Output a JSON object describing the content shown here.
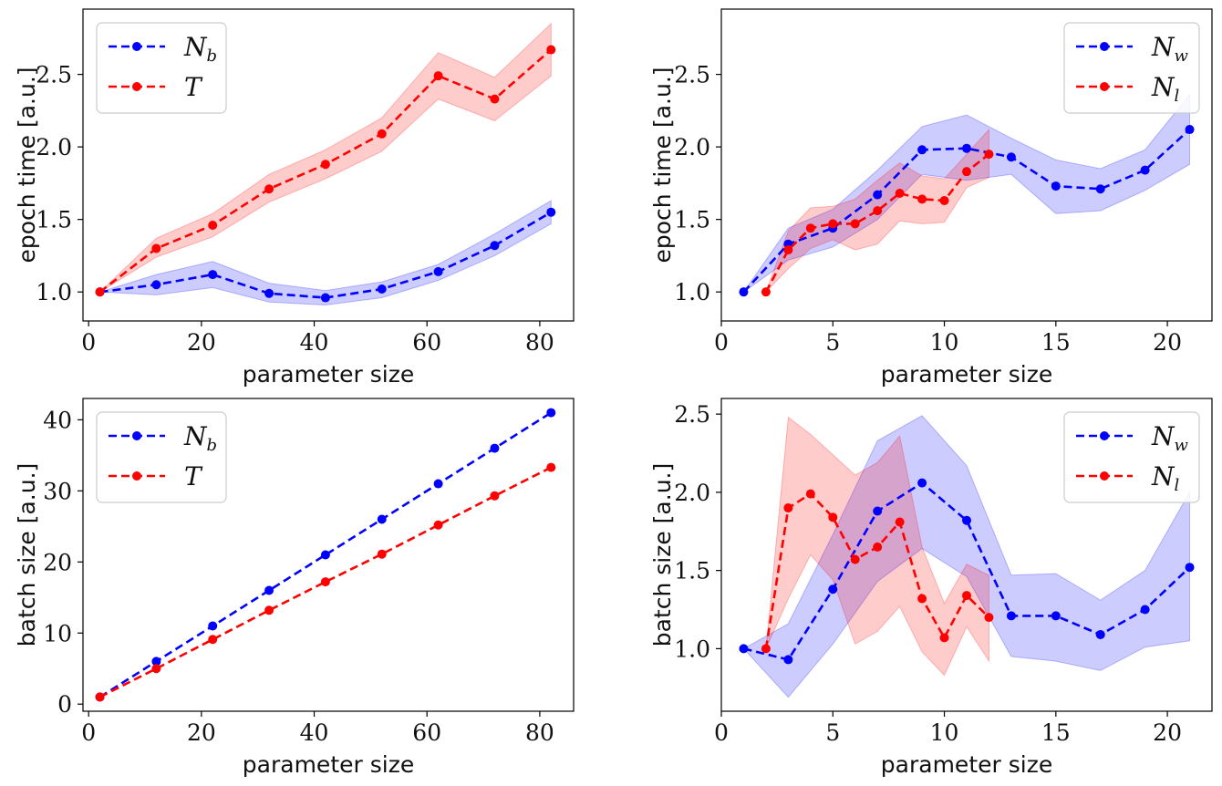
{
  "chart_data": [
    {
      "id": "epoch-vs-param-a",
      "type": "line",
      "xlabel": "parameter size",
      "ylabel": "epoch time [a.u.]",
      "xlim": [
        -1,
        86
      ],
      "ylim": [
        0.8,
        2.95
      ],
      "xticks": [
        0,
        20,
        40,
        60,
        80
      ],
      "yticks": [
        1.0,
        1.5,
        2.0,
        2.5
      ],
      "tick_labels_x": [
        "0",
        "20",
        "40",
        "60",
        "80"
      ],
      "tick_labels_y": [
        "1.0",
        "1.5",
        "2.0",
        "2.5"
      ],
      "legend_position": "top-left",
      "series": [
        {
          "name": "N",
          "sub": "b",
          "color": "#0000ff",
          "x": [
            2,
            12,
            22,
            32,
            42,
            52,
            62,
            72,
            82
          ],
          "y": [
            1.0,
            1.05,
            1.12,
            0.99,
            0.96,
            1.02,
            1.14,
            1.32,
            1.55
          ],
          "lower": [
            1.0,
            0.98,
            1.03,
            0.93,
            0.91,
            0.96,
            1.08,
            1.25,
            1.47
          ],
          "upper": [
            1.0,
            1.12,
            1.21,
            1.06,
            1.01,
            1.07,
            1.19,
            1.4,
            1.63
          ]
        },
        {
          "name": "T",
          "sub": "",
          "color": "#ff0000",
          "x": [
            2,
            12,
            22,
            32,
            42,
            52,
            62,
            72,
            82
          ],
          "y": [
            1.0,
            1.3,
            1.46,
            1.71,
            1.88,
            2.09,
            2.49,
            2.33,
            2.67
          ],
          "lower": [
            1.0,
            1.24,
            1.38,
            1.62,
            1.78,
            1.97,
            2.33,
            2.18,
            2.49
          ],
          "upper": [
            1.0,
            1.37,
            1.54,
            1.81,
            1.98,
            2.2,
            2.65,
            2.48,
            2.85
          ]
        }
      ]
    },
    {
      "id": "epoch-vs-param-b",
      "type": "line",
      "xlabel": "parameter size",
      "ylabel": "epoch time [a.u.]",
      "xlim": [
        0,
        22
      ],
      "ylim": [
        0.8,
        2.95
      ],
      "xticks": [
        0,
        5,
        10,
        15,
        20
      ],
      "yticks": [
        1.0,
        1.5,
        2.0,
        2.5
      ],
      "tick_labels_x": [
        "0",
        "5",
        "10",
        "15",
        "20"
      ],
      "tick_labels_y": [
        "1.0",
        "1.5",
        "2.0",
        "2.5"
      ],
      "legend_position": "top-right",
      "series": [
        {
          "name": "N",
          "sub": "w",
          "color": "#0000ff",
          "x": [
            1,
            3,
            5,
            7,
            9,
            11,
            13,
            15,
            17,
            19,
            21
          ],
          "y": [
            1.0,
            1.33,
            1.44,
            1.67,
            1.98,
            1.99,
            1.93,
            1.73,
            1.71,
            1.84,
            2.12
          ],
          "lower": [
            1.0,
            1.22,
            1.31,
            1.5,
            1.81,
            1.77,
            1.81,
            1.54,
            1.56,
            1.7,
            1.88
          ],
          "upper": [
            1.0,
            1.44,
            1.57,
            1.84,
            2.14,
            2.22,
            2.06,
            1.91,
            1.85,
            1.98,
            2.36
          ]
        },
        {
          "name": "N",
          "sub": "l",
          "color": "#ff0000",
          "x": [
            2,
            3,
            4,
            5,
            6,
            7,
            8,
            9,
            10,
            11,
            12
          ],
          "y": [
            1.0,
            1.29,
            1.44,
            1.47,
            1.47,
            1.56,
            1.68,
            1.64,
            1.63,
            1.83,
            1.95
          ],
          "lower": [
            1.0,
            1.16,
            1.3,
            1.36,
            1.29,
            1.33,
            1.49,
            1.47,
            1.48,
            1.72,
            1.79
          ],
          "upper": [
            1.0,
            1.42,
            1.58,
            1.59,
            1.64,
            1.77,
            1.89,
            1.8,
            1.78,
            1.95,
            2.12
          ]
        }
      ]
    },
    {
      "id": "batch-vs-param-a",
      "type": "line",
      "xlabel": "parameter size",
      "ylabel": "batch size [a.u.]",
      "xlim": [
        -1,
        86
      ],
      "ylim": [
        -1,
        43
      ],
      "xticks": [
        0,
        20,
        40,
        60,
        80
      ],
      "yticks": [
        0,
        10,
        20,
        30,
        40
      ],
      "tick_labels_x": [
        "0",
        "20",
        "40",
        "60",
        "80"
      ],
      "tick_labels_y": [
        "0",
        "10",
        "20",
        "30",
        "40"
      ],
      "legend_position": "top-left",
      "series": [
        {
          "name": "N",
          "sub": "b",
          "color": "#0000ff",
          "x": [
            2,
            12,
            22,
            32,
            42,
            52,
            62,
            72,
            82
          ],
          "y": [
            1,
            6,
            11,
            16,
            21,
            26,
            31,
            36,
            41
          ]
        },
        {
          "name": "T",
          "sub": "",
          "color": "#ff0000",
          "x": [
            2,
            12,
            22,
            32,
            42,
            52,
            62,
            72,
            82
          ],
          "y": [
            1,
            5.0,
            9.1,
            13.2,
            17.2,
            21.1,
            25.2,
            29.3,
            33.3
          ]
        }
      ]
    },
    {
      "id": "batch-vs-param-b",
      "type": "line",
      "xlabel": "parameter size",
      "ylabel": "batch size [a.u.]",
      "xlim": [
        0,
        22
      ],
      "ylim": [
        0.6,
        2.6
      ],
      "xticks": [
        0,
        5,
        10,
        15,
        20
      ],
      "yticks": [
        1.0,
        1.5,
        2.0,
        2.5
      ],
      "tick_labels_x": [
        "0",
        "5",
        "10",
        "15",
        "20"
      ],
      "tick_labels_y": [
        "1.0",
        "1.5",
        "2.0",
        "2.5"
      ],
      "legend_position": "top-right",
      "series": [
        {
          "name": "N",
          "sub": "w",
          "color": "#0000ff",
          "x": [
            1,
            3,
            5,
            7,
            9,
            11,
            13,
            15,
            17,
            19,
            21
          ],
          "y": [
            1.0,
            0.93,
            1.38,
            1.88,
            2.06,
            1.82,
            1.21,
            1.21,
            1.09,
            1.25,
            1.52
          ],
          "lower": [
            1.0,
            0.69,
            1.03,
            1.43,
            1.64,
            1.46,
            0.95,
            0.92,
            0.86,
            1.01,
            1.05
          ],
          "upper": [
            1.0,
            1.16,
            1.73,
            2.33,
            2.49,
            2.17,
            1.47,
            1.48,
            1.31,
            1.5,
            2.0
          ]
        },
        {
          "name": "N",
          "sub": "l",
          "color": "#ff0000",
          "x": [
            2,
            3,
            4,
            5,
            6,
            7,
            8,
            9,
            10,
            11,
            12
          ],
          "y": [
            1.0,
            1.9,
            1.99,
            1.84,
            1.57,
            1.65,
            1.81,
            1.32,
            1.07,
            1.34,
            1.2
          ],
          "lower": [
            1.0,
            1.32,
            1.6,
            1.44,
            1.03,
            1.11,
            1.27,
            0.98,
            0.83,
            1.14,
            0.92
          ],
          "upper": [
            1.0,
            2.48,
            2.37,
            2.24,
            2.11,
            2.19,
            2.36,
            1.65,
            1.29,
            1.54,
            1.47
          ]
        }
      ]
    }
  ]
}
